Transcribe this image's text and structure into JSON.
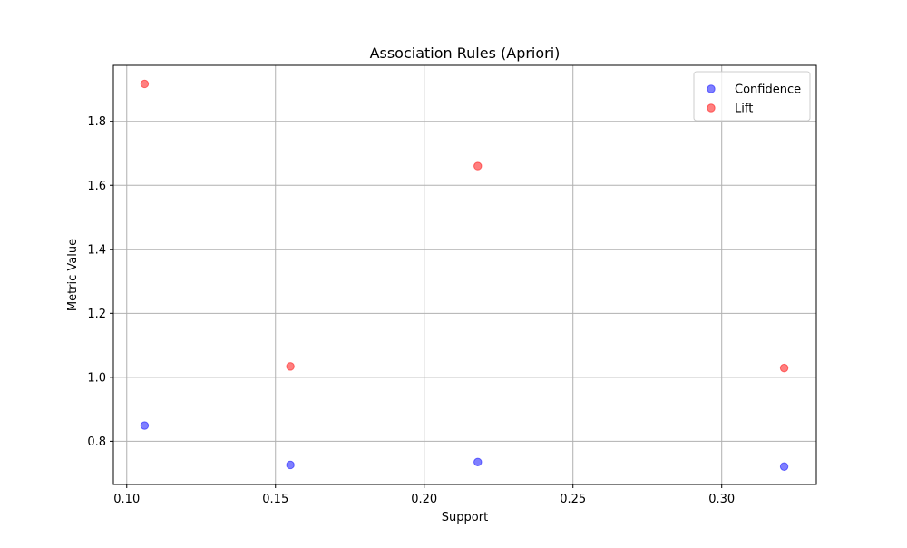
{
  "chart_data": {
    "type": "scatter",
    "title": "Association Rules (Apriori)",
    "xlabel": "Support",
    "ylabel": "Metric Value",
    "xlim": [
      0.0955,
      0.3318
    ],
    "ylim": [
      0.665,
      1.975
    ],
    "xticks": [
      0.1,
      0.15,
      0.2,
      0.25,
      0.3
    ],
    "xtick_labels": [
      "0.10",
      "0.15",
      "0.20",
      "0.25",
      "0.30"
    ],
    "yticks": [
      0.8,
      1.0,
      1.2,
      1.4,
      1.6,
      1.8
    ],
    "ytick_labels": [
      "0.8",
      "1.0",
      "1.2",
      "1.4",
      "1.6",
      "1.8"
    ],
    "grid": true,
    "legend_position": "top-right",
    "series": [
      {
        "name": "Confidence",
        "color": "#0000ff",
        "x": [
          0.106,
          0.155,
          0.218,
          0.321
        ],
        "y": [
          0.849,
          0.726,
          0.735,
          0.721
        ]
      },
      {
        "name": "Lift",
        "color": "#ff0000",
        "x": [
          0.106,
          0.155,
          0.218,
          0.321
        ],
        "y": [
          1.917,
          1.034,
          1.66,
          1.029
        ]
      }
    ]
  }
}
